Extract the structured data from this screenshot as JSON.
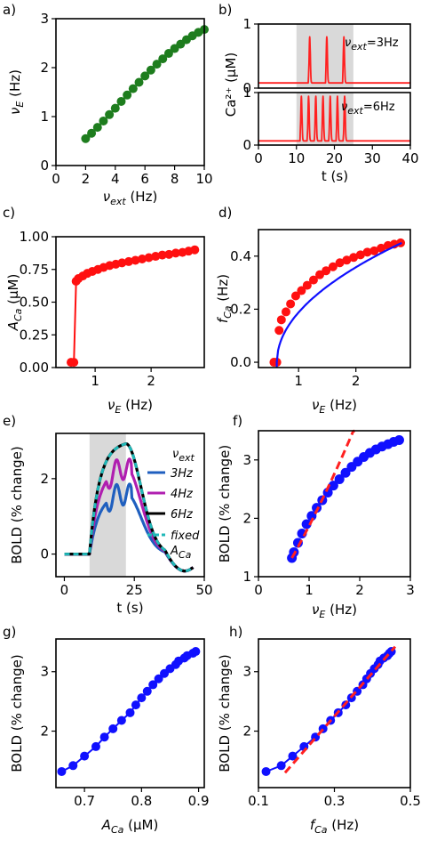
{
  "chart_data": [
    {
      "id": "a",
      "type": "scatter",
      "panel_label": "a)",
      "xlabel": "ν_ext (Hz)",
      "ylabel": "ν_E (Hz)",
      "xlim": [
        0,
        10
      ],
      "ylim": [
        0,
        3
      ],
      "xticks": [
        "0",
        "2",
        "4",
        "6",
        "8",
        "10"
      ],
      "yticks": [
        "0",
        "1",
        "2",
        "3"
      ],
      "series": [
        {
          "color": "#1e7d1e",
          "x": [
            2.0,
            2.4,
            2.8,
            3.2,
            3.6,
            4.0,
            4.4,
            4.8,
            5.2,
            5.6,
            6.0,
            6.4,
            6.8,
            7.2,
            7.6,
            8.0,
            8.4,
            8.8,
            9.2,
            9.6,
            10.0
          ],
          "y": [
            0.55,
            0.66,
            0.78,
            0.91,
            1.04,
            1.17,
            1.31,
            1.44,
            1.57,
            1.7,
            1.83,
            1.95,
            2.07,
            2.18,
            2.29,
            2.39,
            2.48,
            2.57,
            2.65,
            2.72,
            2.78
          ]
        }
      ]
    },
    {
      "id": "b_top",
      "type": "line",
      "panel_label": "b)",
      "annotation": "ν_ext=3Hz",
      "ylabel": "Ca²⁺ (μM)",
      "xlim": [
        0,
        40
      ],
      "ylim": [
        0,
        1
      ],
      "yticks": [
        "0",
        "1"
      ],
      "shaded_x": [
        10,
        25
      ],
      "line_color": "#ff2020",
      "spike_times": [
        13.5,
        18,
        22.5
      ],
      "spike_height": 0.72,
      "baseline": 0.08
    },
    {
      "id": "b_bottom",
      "type": "line",
      "annotation": "ν_ext=6Hz",
      "xlabel": "t (s)",
      "xlim": [
        0,
        40
      ],
      "ylim": [
        0,
        1
      ],
      "yticks": [
        "0",
        "1"
      ],
      "xticks": [
        "0",
        "10",
        "20",
        "30",
        "40"
      ],
      "shaded_x": [
        10,
        25
      ],
      "line_color": "#ff2020",
      "spike_times": [
        11.3,
        13.2,
        15.1,
        17.0,
        18.9,
        20.8,
        22.7
      ],
      "spike_height": 0.85,
      "baseline": 0.08
    },
    {
      "id": "c",
      "type": "scatter",
      "panel_label": "c)",
      "xlabel": "ν_E (Hz)",
      "ylabel": "A_Ca (μM)",
      "xlim": [
        0.3,
        2.95
      ],
      "ylim": [
        0,
        1
      ],
      "xticks": [
        "1",
        "2"
      ],
      "yticks": [
        "0.00",
        "0.25",
        "0.50",
        "0.75",
        "1.00"
      ],
      "series": [
        {
          "color": "#ff1010",
          "x": [
            0.57,
            0.62,
            0.66,
            0.7,
            0.78,
            0.86,
            0.95,
            1.05,
            1.15,
            1.26,
            1.37,
            1.48,
            1.6,
            1.72,
            1.84,
            1.96,
            2.08,
            2.2,
            2.32,
            2.44,
            2.56,
            2.67,
            2.78
          ],
          "y": [
            0.04,
            0.04,
            0.66,
            0.68,
            0.7,
            0.72,
            0.735,
            0.75,
            0.765,
            0.78,
            0.79,
            0.8,
            0.81,
            0.82,
            0.83,
            0.84,
            0.85,
            0.86,
            0.865,
            0.875,
            0.88,
            0.89,
            0.9
          ]
        }
      ]
    },
    {
      "id": "d",
      "type": "scatter",
      "panel_label": "d)",
      "xlabel": "ν_E (Hz)",
      "ylabel": "f_Ca (Hz)",
      "xlim": [
        0.3,
        2.95
      ],
      "ylim": [
        -0.02,
        0.5
      ],
      "xticks": [
        "1",
        "2"
      ],
      "yticks": [
        "0.0",
        "0.2",
        "0.4"
      ],
      "series": [
        {
          "color": "#ff1010",
          "x": [
            0.57,
            0.62,
            0.66,
            0.7,
            0.78,
            0.86,
            0.95,
            1.05,
            1.15,
            1.26,
            1.37,
            1.48,
            1.6,
            1.72,
            1.84,
            1.96,
            2.08,
            2.2,
            2.32,
            2.44,
            2.56,
            2.67,
            2.78
          ],
          "y": [
            0.0,
            0.0,
            0.12,
            0.16,
            0.19,
            0.22,
            0.25,
            0.27,
            0.29,
            0.31,
            0.33,
            0.345,
            0.36,
            0.375,
            0.385,
            0.395,
            0.405,
            0.415,
            0.42,
            0.43,
            0.44,
            0.445,
            0.45
          ]
        }
      ],
      "fit": {
        "color": "#1010ff",
        "x0": 0.62,
        "x1": 2.8
      }
    },
    {
      "id": "e",
      "type": "line",
      "panel_label": "e)",
      "xlabel": "t (s)",
      "ylabel": "BOLD (% change)",
      "xlim": [
        -3,
        50
      ],
      "ylim": [
        -0.6,
        3.2
      ],
      "xticks": [
        "0",
        "25",
        "50"
      ],
      "yticks": [
        "0",
        "2"
      ],
      "shaded_x": [
        9,
        22
      ],
      "legend_title": "ν_ext",
      "series": [
        {
          "name": "3Hz",
          "color": "#1f5fbf",
          "peak": 1.65
        },
        {
          "name": "4Hz",
          "color": "#b01fb0",
          "peak": 2.35
        },
        {
          "name": "6Hz",
          "color": "#000000",
          "peak": 3.0
        },
        {
          "name": "fixed A_Ca",
          "color": "#20b8b8",
          "peak": 3.0
        }
      ]
    },
    {
      "id": "f",
      "type": "scatter",
      "panel_label": "f)",
      "xlabel": "ν_E (Hz)",
      "ylabel": "BOLD (% change)",
      "xlim": [
        0,
        3
      ],
      "ylim": [
        1,
        3.5
      ],
      "xticks": [
        "0",
        "1",
        "2",
        "3"
      ],
      "yticks": [
        "1",
        "2",
        "3"
      ],
      "series": [
        {
          "color": "#1010ff",
          "x": [
            0.66,
            0.7,
            0.78,
            0.86,
            0.95,
            1.05,
            1.15,
            1.26,
            1.37,
            1.48,
            1.6,
            1.72,
            1.84,
            1.96,
            2.08,
            2.2,
            2.32,
            2.44,
            2.56,
            2.67,
            2.78
          ],
          "y": [
            1.32,
            1.42,
            1.58,
            1.74,
            1.9,
            2.04,
            2.18,
            2.31,
            2.44,
            2.56,
            2.67,
            2.78,
            2.88,
            2.97,
            3.05,
            3.12,
            3.18,
            3.23,
            3.27,
            3.31,
            3.34
          ]
        }
      ],
      "fit": {
        "color": "#ff2020",
        "x0": 0.66,
        "x1": 1.9
      }
    },
    {
      "id": "g",
      "type": "scatter",
      "panel_label": "g)",
      "xlabel": "A_Ca (μM)",
      "ylabel": "BOLD (% change)",
      "xlim": [
        0.65,
        0.91
      ],
      "ylim": [
        1.05,
        3.55
      ],
      "xticks": [
        "0.7",
        "0.8",
        "0.9"
      ],
      "yticks": [
        "2",
        "3"
      ],
      "series": [
        {
          "color": "#1010ff",
          "x": [
            0.66,
            0.68,
            0.7,
            0.72,
            0.735,
            0.75,
            0.765,
            0.78,
            0.79,
            0.8,
            0.81,
            0.82,
            0.83,
            0.84,
            0.85,
            0.86,
            0.865,
            0.875,
            0.88,
            0.89,
            0.895
          ],
          "y": [
            1.32,
            1.42,
            1.58,
            1.74,
            1.9,
            2.04,
            2.18,
            2.31,
            2.44,
            2.56,
            2.67,
            2.78,
            2.88,
            2.97,
            3.05,
            3.12,
            3.18,
            3.23,
            3.27,
            3.31,
            3.34
          ]
        }
      ]
    },
    {
      "id": "h",
      "type": "scatter",
      "panel_label": "h)",
      "xlabel": "f_Ca (Hz)",
      "ylabel": "BOLD (% change)",
      "xlim": [
        0.1,
        0.5
      ],
      "ylim": [
        1.05,
        3.55
      ],
      "xticks": [
        "0.1",
        "0.3",
        "0.5"
      ],
      "yticks": [
        "2",
        "3"
      ],
      "series": [
        {
          "color": "#1010ff",
          "x": [
            0.12,
            0.16,
            0.19,
            0.22,
            0.25,
            0.27,
            0.29,
            0.31,
            0.33,
            0.345,
            0.36,
            0.375,
            0.385,
            0.395,
            0.405,
            0.415,
            0.42,
            0.43,
            0.44,
            0.445,
            0.45
          ],
          "y": [
            1.32,
            1.42,
            1.58,
            1.74,
            1.9,
            2.04,
            2.18,
            2.31,
            2.44,
            2.56,
            2.67,
            2.78,
            2.88,
            2.97,
            3.05,
            3.12,
            3.18,
            3.23,
            3.27,
            3.31,
            3.34
          ]
        }
      ],
      "fit": {
        "color": "#ff2020",
        "x0": 0.17,
        "x1": 0.46
      }
    }
  ]
}
